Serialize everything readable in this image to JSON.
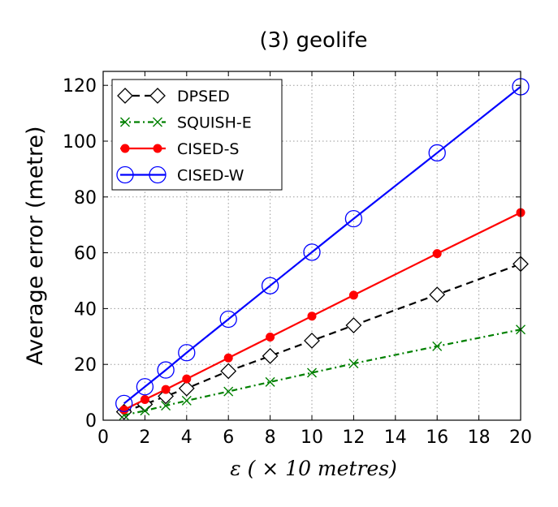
{
  "chart_data": {
    "type": "line",
    "title": "(3) geolife",
    "xlabel": "ε ( × 10 metres)",
    "ylabel": "Average error (metre)",
    "xlim": [
      0,
      20
    ],
    "ylim": [
      0,
      125
    ],
    "xticks": [
      0,
      2,
      4,
      6,
      8,
      10,
      12,
      14,
      16,
      18,
      20
    ],
    "yticks": [
      0,
      20,
      40,
      60,
      80,
      100,
      120
    ],
    "grid": true,
    "legend_position": "top-left",
    "x": [
      1,
      2,
      3,
      4,
      6,
      8,
      10,
      12,
      16,
      20
    ],
    "series": [
      {
        "name": "DPSED",
        "color": "#000000",
        "line": "dashed",
        "marker": "diamond-open",
        "values": [
          3.0,
          5.7,
          8.6,
          11.4,
          17.6,
          23.0,
          28.5,
          34.0,
          45.0,
          56.0
        ]
      },
      {
        "name": "SQUISH-E",
        "color": "#008000",
        "line": "dash-dot",
        "marker": "x",
        "values": [
          1.8,
          3.4,
          5.2,
          7.0,
          10.3,
          13.7,
          17.0,
          20.3,
          26.5,
          32.5
        ]
      },
      {
        "name": "CISED-S",
        "color": "#ff0000",
        "line": "solid",
        "marker": "circle-filled",
        "values": [
          3.7,
          7.4,
          11.0,
          14.8,
          22.3,
          29.8,
          37.3,
          44.8,
          59.7,
          74.4
        ]
      },
      {
        "name": "CISED-W",
        "color": "#0000ff",
        "line": "solid",
        "marker": "circle-open",
        "values": [
          6.0,
          12.0,
          18.0,
          24.2,
          36.2,
          48.2,
          60.2,
          72.2,
          95.8,
          119.5
        ]
      }
    ]
  }
}
